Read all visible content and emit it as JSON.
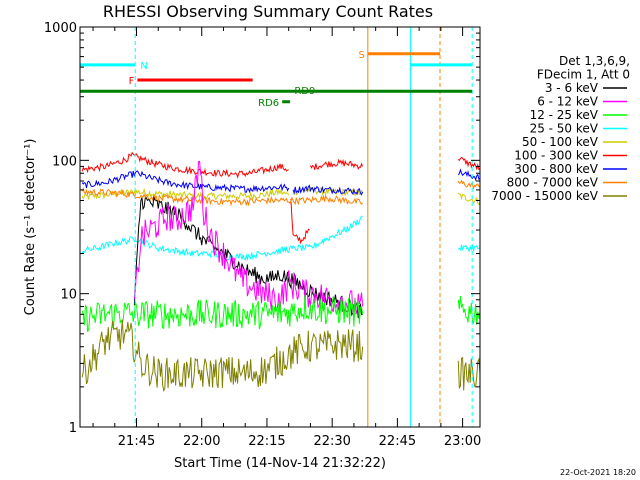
{
  "chart_data": {
    "type": "line",
    "title": "RHESSI Observing Summary Count Rates",
    "xlabel": "Start Time (14-Nov-14 21:32:22)",
    "ylabel": "Count Rate (s⁻¹ detector⁻¹)",
    "x_range_minutes_of_day": [
      1292,
      1384
    ],
    "ylim": [
      1,
      1000
    ],
    "y_scale": "log",
    "x_ticks": [
      {
        "label": "21:45",
        "minute": 1305
      },
      {
        "label": "22:00",
        "minute": 1320
      },
      {
        "label": "22:15",
        "minute": 1335
      },
      {
        "label": "22:30",
        "minute": 1350
      },
      {
        "label": "22:45",
        "minute": 1365
      },
      {
        "label": "23:00",
        "minute": 1380
      }
    ],
    "y_ticks": [
      {
        "label": "1",
        "value": 1
      },
      {
        "label": "10",
        "value": 10
      },
      {
        "label": "100",
        "value": 100
      },
      {
        "label": "1000",
        "value": 1000
      }
    ],
    "legend": {
      "position": "right",
      "header": [
        "Det 1,3,6,9,",
        "FDecim 1, Att 0"
      ],
      "entries": [
        {
          "label": "3 - 6 keV",
          "color": "#000000"
        },
        {
          "label": "6 - 12 keV",
          "color": "#ff00ff"
        },
        {
          "label": "12 - 25 keV",
          "color": "#00ff00"
        },
        {
          "label": "25 - 50 keV",
          "color": "#00ffff"
        },
        {
          "label": "50 - 100 keV",
          "color": "#cccc00"
        },
        {
          "label": "100 - 300 keV",
          "color": "#ff0000"
        },
        {
          "label": "300 - 800 keV",
          "color": "#0000ff"
        },
        {
          "label": "800 - 7000 keV",
          "color": "#ff8000"
        },
        {
          "label": "7000 - 15000 keV",
          "color": "#808000"
        }
      ]
    },
    "series": [
      {
        "color": "#cccc00",
        "segments": [
          [
            [
              1292.5,
              53
            ],
            [
              1298,
              55
            ],
            [
              1302,
              57
            ],
            [
              1305,
              58
            ],
            [
              1310,
              56
            ],
            [
              1315,
              55
            ],
            [
              1320,
              54
            ],
            [
              1326,
              54
            ],
            [
              1330,
              54
            ],
            [
              1334,
              55
            ],
            [
              1338,
              58
            ],
            [
              1340,
              55
            ]
          ],
          [
            [
              1341,
              58
            ],
            [
              1344,
              60
            ],
            [
              1347,
              59
            ],
            [
              1349,
              58
            ],
            [
              1357,
              57
            ]
          ],
          [
            [
              1379,
              55
            ],
            [
              1381,
              52
            ],
            [
              1384,
              49
            ]
          ]
        ]
      },
      {
        "color": "#ff0000",
        "segments": [
          [
            [
              1292.5,
              85
            ],
            [
              1298,
              90
            ],
            [
              1302,
              100
            ],
            [
              1304,
              108
            ],
            [
              1306,
              103
            ],
            [
              1309,
              95
            ],
            [
              1313,
              88
            ],
            [
              1317,
              84
            ],
            [
              1321,
              82
            ],
            [
              1324,
              80
            ],
            [
              1328,
              79
            ],
            [
              1331,
              80
            ],
            [
              1335,
              85
            ],
            [
              1338,
              90
            ],
            [
              1340,
              85
            ]
          ],
          [
            [
              1340.5,
              50
            ],
            [
              1341,
              27
            ],
            [
              1343,
              25
            ],
            [
              1344,
              28
            ],
            [
              1344.8,
              30
            ]
          ],
          [
            [
              1345,
              88
            ],
            [
              1348,
              93
            ],
            [
              1350,
              95
            ],
            [
              1353,
              95
            ],
            [
              1357,
              90
            ]
          ],
          [
            [
              1379,
              105
            ],
            [
              1380,
              100
            ],
            [
              1382,
              93
            ],
            [
              1384,
              87
            ]
          ]
        ]
      },
      {
        "color": "#0000ff",
        "segments": [
          [
            [
              1292.5,
              65
            ],
            [
              1298,
              68
            ],
            [
              1302,
              75
            ],
            [
              1305,
              80
            ],
            [
              1308,
              74
            ],
            [
              1312,
              68
            ],
            [
              1316,
              65
            ],
            [
              1320,
              63
            ],
            [
              1325,
              62
            ],
            [
              1330,
              61
            ],
            [
              1334,
              62
            ],
            [
              1338,
              63
            ],
            [
              1340,
              62
            ]
          ],
          [
            [
              1341,
              60
            ],
            [
              1345,
              62
            ],
            [
              1348,
              60
            ],
            [
              1352,
              60
            ],
            [
              1357,
              58
            ]
          ],
          [
            [
              1379,
              82
            ],
            [
              1381,
              78
            ],
            [
              1384,
              74
            ]
          ]
        ]
      },
      {
        "color": "#ff8000",
        "segments": [
          [
            [
              1292.5,
              58
            ],
            [
              1300,
              57
            ],
            [
              1305,
              55
            ],
            [
              1310,
              52
            ],
            [
              1320,
              50
            ],
            [
              1325,
              49
            ],
            [
              1330,
              49
            ],
            [
              1335,
              50
            ],
            [
              1340,
              50
            ],
            [
              1344,
              50
            ],
            [
              1349,
              52
            ],
            [
              1353,
              50
            ],
            [
              1357,
              48
            ]
          ],
          [
            [
              1379,
              68
            ],
            [
              1382,
              65
            ],
            [
              1384,
              63
            ]
          ]
        ]
      },
      {
        "color": "#00ffff",
        "segments": [
          [
            [
              1292.5,
              21
            ],
            [
              1296,
              22
            ],
            [
              1300,
              24
            ],
            [
              1303,
              25
            ],
            [
              1305,
              26
            ],
            [
              1307,
              24
            ],
            [
              1310,
              22
            ],
            [
              1314,
              21
            ],
            [
              1318,
              20
            ],
            [
              1322,
              20
            ],
            [
              1326,
              19
            ],
            [
              1330,
              19
            ],
            [
              1334,
              20
            ],
            [
              1338,
              21
            ],
            [
              1342,
              22
            ],
            [
              1345,
              22
            ],
            [
              1348,
              25
            ],
            [
              1350,
              27
            ],
            [
              1353,
              30
            ],
            [
              1356,
              35
            ],
            [
              1357,
              38
            ]
          ],
          [
            [
              1379,
              22
            ],
            [
              1381,
              22
            ],
            [
              1384,
              22
            ]
          ]
        ]
      },
      {
        "color": "#000000",
        "segments": [
          [
            [
              1304.5,
              8
            ],
            [
              1305.5,
              30
            ],
            [
              1306,
              50
            ],
            [
              1308,
              48
            ],
            [
              1310,
              46
            ],
            [
              1312,
              43
            ],
            [
              1314,
              40
            ],
            [
              1316,
              36
            ],
            [
              1318,
              30
            ],
            [
              1320,
              26
            ],
            [
              1322,
              23
            ],
            [
              1324,
              21
            ],
            [
              1326,
              19
            ],
            [
              1328,
              17
            ],
            [
              1330,
              15
            ],
            [
              1332,
              14
            ],
            [
              1334,
              13
            ],
            [
              1336,
              13
            ],
            [
              1338,
              14
            ],
            [
              1340,
              13
            ],
            [
              1342,
              12
            ],
            [
              1344,
              11
            ],
            [
              1346,
              10
            ],
            [
              1348,
              9.5
            ],
            [
              1350,
              9
            ],
            [
              1352,
              8.5
            ],
            [
              1354,
              8
            ],
            [
              1356,
              7.5
            ],
            [
              1357,
              7
            ]
          ]
        ]
      },
      {
        "color": "#ff00ff",
        "segments": [
          [
            [
              1304.5,
              8
            ],
            [
              1306,
              26
            ],
            [
              1308,
              30
            ],
            [
              1310,
              33
            ],
            [
              1312,
              38
            ],
            [
              1314,
              35
            ],
            [
              1316,
              40
            ],
            [
              1318,
              45
            ],
            [
              1319.5,
              100
            ],
            [
              1320.5,
              40
            ],
            [
              1322,
              28
            ],
            [
              1324,
              22
            ],
            [
              1326,
              18
            ],
            [
              1328,
              14
            ],
            [
              1330,
              12
            ],
            [
              1332,
              11
            ],
            [
              1334,
              10
            ],
            [
              1338,
              9
            ],
            [
              1340,
              12
            ],
            [
              1342,
              11
            ],
            [
              1344,
              10
            ],
            [
              1346,
              10
            ],
            [
              1348,
              9.5
            ],
            [
              1350,
              9
            ],
            [
              1352,
              9
            ],
            [
              1354,
              8.5
            ],
            [
              1356,
              8
            ],
            [
              1357,
              8
            ]
          ]
        ]
      },
      {
        "color": "#00ff00",
        "segments": [
          [
            [
              1292.5,
              6.5
            ],
            [
              1298,
              7
            ],
            [
              1302,
              7.2
            ],
            [
              1305,
              7
            ],
            [
              1310,
              7
            ],
            [
              1316,
              7
            ],
            [
              1322,
              7
            ],
            [
              1328,
              7
            ],
            [
              1334,
              7
            ],
            [
              1340,
              7.2
            ],
            [
              1344,
              8
            ],
            [
              1348,
              7.5
            ],
            [
              1352,
              7.5
            ],
            [
              1357,
              7
            ]
          ],
          [
            [
              1379,
              7.5
            ],
            [
              1384,
              7.3
            ]
          ]
        ]
      },
      {
        "color": "#808000",
        "segments": [
          [
            [
              1292.5,
              2.5
            ],
            [
              1298,
              4.5
            ],
            [
              1302,
              5
            ],
            [
              1304,
              4.5
            ],
            [
              1306,
              3
            ],
            [
              1310,
              2.5
            ],
            [
              1315,
              2.5
            ],
            [
              1320,
              2.5
            ],
            [
              1325,
              2.6
            ],
            [
              1330,
              2.5
            ],
            [
              1335,
              2.7
            ],
            [
              1340,
              3.5
            ],
            [
              1344,
              4
            ],
            [
              1348,
              4
            ],
            [
              1352,
              4.2
            ],
            [
              1357,
              4
            ]
          ],
          [
            [
              1379,
              2.5
            ],
            [
              1384,
              2.5
            ]
          ]
        ]
      }
    ],
    "annotations": [
      {
        "type": "vertical",
        "x": 1292,
        "color": "#00ffff",
        "style": "solid"
      },
      {
        "type": "vertical",
        "x": 1304.7,
        "color": "#00ffff",
        "style": "dashed"
      },
      {
        "type": "vertical",
        "x": 1358.2,
        "color": "#ff8000",
        "style": "solid"
      },
      {
        "type": "vertical",
        "x": 1368,
        "color": "#00ffff",
        "style": "solid"
      },
      {
        "type": "vertical",
        "x": 1374.8,
        "color": "#ff8000",
        "style": "dashed"
      },
      {
        "type": "vertical",
        "x": 1382.2,
        "color": "#00ffff",
        "style": "dashed"
      },
      {
        "type": "bar",
        "label": "N",
        "color": "#00ffff",
        "x0": 1292,
        "x1": 1304.7,
        "y": 520,
        "label_side": "right"
      },
      {
        "type": "bar",
        "label": "",
        "color": "#00ffff",
        "x0": 1368,
        "x1": 1382.2,
        "y": 520
      },
      {
        "type": "bar",
        "label": "F",
        "color": "#ff0000",
        "x0": 1305.2,
        "x1": 1331.7,
        "y": 400,
        "label_side": "left"
      },
      {
        "type": "bar",
        "label": "",
        "color": "#008000",
        "x0": 1292,
        "x1": 1382.2,
        "y": 330
      },
      {
        "type": "label",
        "label": "RD9",
        "x": 1341.3,
        "y": 330,
        "color": "#008000"
      },
      {
        "type": "bar",
        "label": "RD6",
        "color": "#008000",
        "x0": 1338.5,
        "x1": 1340.3,
        "y": 275,
        "label_side": "left"
      },
      {
        "type": "bar",
        "label": "S",
        "color": "#ff8000",
        "x0": 1358.2,
        "x1": 1374.8,
        "y": 630,
        "label_side": "left"
      }
    ]
  },
  "timestamp": "22-Oct-2021 18:20"
}
